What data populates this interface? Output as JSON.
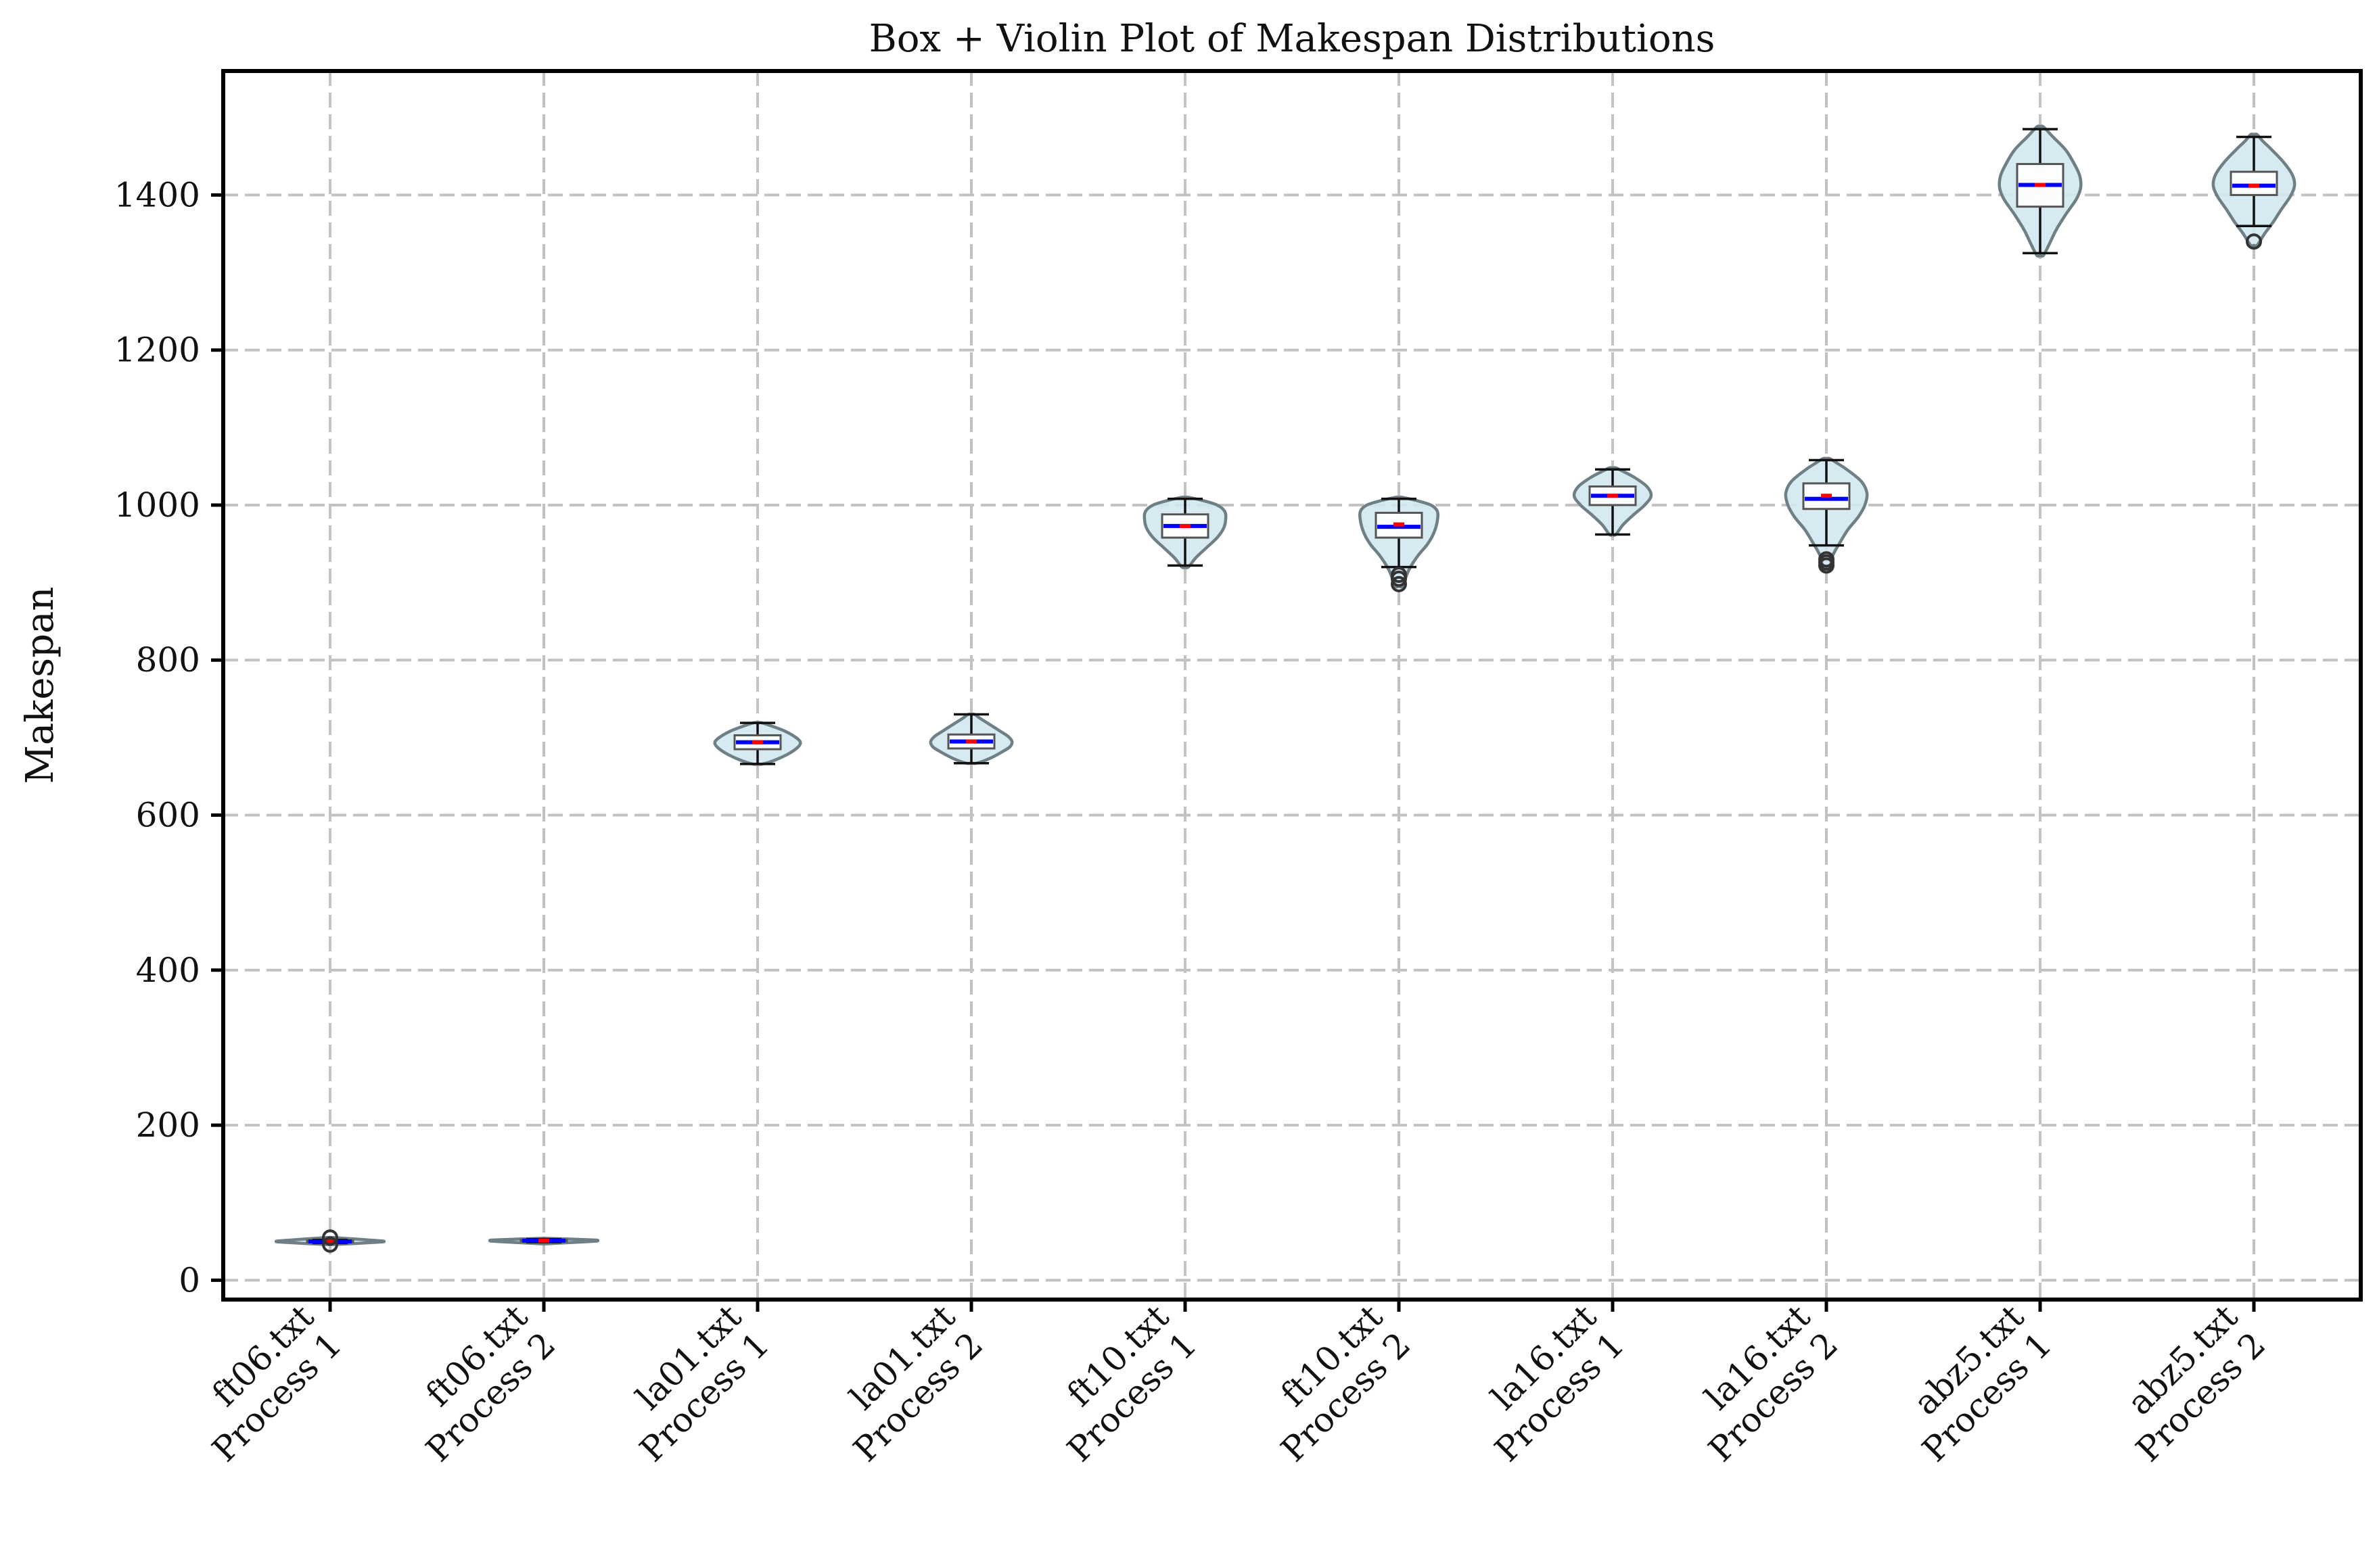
{
  "chart_data": {
    "type": "violin",
    "title": "Box + Violin Plot of Makespan Distributions",
    "xlabel": "",
    "ylabel": "Makespan",
    "ylim": [
      -25,
      1560
    ],
    "yticks": [
      0,
      200,
      400,
      600,
      800,
      1000,
      1200,
      1400
    ],
    "grid": true,
    "colors": {
      "violin_fill": "#d3e8ef",
      "violin_edge": "#6e7f86",
      "median": "#ff0000",
      "mean": "#0000ff",
      "box_fill": "#ffffff"
    },
    "categories": [
      {
        "line1": "ft06.txt",
        "line2": "Process 1"
      },
      {
        "line1": "ft06.txt",
        "line2": "Process 2"
      },
      {
        "line1": "la01.txt",
        "line2": "Process 1"
      },
      {
        "line1": "la01.txt",
        "line2": "Process 2"
      },
      {
        "line1": "ft10.txt",
        "line2": "Process 1"
      },
      {
        "line1": "ft10.txt",
        "line2": "Process 2"
      },
      {
        "line1": "la16.txt",
        "line2": "Process 1"
      },
      {
        "line1": "la16.txt",
        "line2": "Process 2"
      },
      {
        "line1": "abz5.txt",
        "line2": "Process 1"
      },
      {
        "line1": "abz5.txt",
        "line2": "Process 2"
      }
    ],
    "series": [
      {
        "min": 48,
        "q1": 49,
        "median": 50,
        "mean": 50,
        "q3": 51,
        "max": 52,
        "outliers": [
          46,
          55
        ],
        "violin": {
          "min": 46,
          "max": 55,
          "profile": [
            [
              46,
              0.03
            ],
            [
              49,
              0.45
            ],
            [
              50,
              0.5
            ],
            [
              51,
              0.45
            ],
            [
              55,
              0.03
            ]
          ]
        }
      },
      {
        "min": 49,
        "q1": 50,
        "median": 51,
        "mean": 51,
        "q3": 52,
        "max": 53,
        "outliers": [],
        "violin": {
          "min": 47,
          "max": 54,
          "profile": [
            [
              47,
              0.03
            ],
            [
              50,
              0.45
            ],
            [
              51,
              0.5
            ],
            [
              52,
              0.45
            ],
            [
              54,
              0.03
            ]
          ]
        }
      },
      {
        "min": 666,
        "q1": 685,
        "median": 694,
        "mean": 694,
        "q3": 703,
        "max": 719,
        "outliers": [],
        "violin": {
          "min": 666,
          "max": 719,
          "profile": [
            [
              666,
              0.05
            ],
            [
              672,
              0.18
            ],
            [
              680,
              0.3
            ],
            [
              688,
              0.38
            ],
            [
              694,
              0.4
            ],
            [
              700,
              0.36
            ],
            [
              708,
              0.26
            ],
            [
              714,
              0.15
            ],
            [
              719,
              0.04
            ]
          ]
        }
      },
      {
        "min": 667,
        "q1": 686,
        "median": 695,
        "mean": 695,
        "q3": 704,
        "max": 730,
        "outliers": [],
        "violin": {
          "min": 667,
          "max": 730,
          "profile": [
            [
              667,
              0.05
            ],
            [
              673,
              0.17
            ],
            [
              681,
              0.28
            ],
            [
              688,
              0.36
            ],
            [
              695,
              0.38
            ],
            [
              702,
              0.34
            ],
            [
              710,
              0.25
            ],
            [
              718,
              0.16
            ],
            [
              725,
              0.08
            ],
            [
              730,
              0.03
            ]
          ]
        }
      },
      {
        "min": 922,
        "q1": 958,
        "median": 973,
        "mean": 973,
        "q3": 988,
        "max": 1008,
        "outliers": [],
        "violin": {
          "min": 920,
          "max": 1010,
          "profile": [
            [
              920,
              0.03
            ],
            [
              932,
              0.1
            ],
            [
              945,
              0.2
            ],
            [
              958,
              0.3
            ],
            [
              970,
              0.36
            ],
            [
              982,
              0.38
            ],
            [
              992,
              0.37
            ],
            [
              1000,
              0.3
            ],
            [
              1006,
              0.16
            ],
            [
              1010,
              0.03
            ]
          ]
        }
      },
      {
        "min": 920,
        "q1": 958,
        "median": 975,
        "mean": 972,
        "q3": 990,
        "max": 1008,
        "outliers": [
          898,
          905,
          910
        ],
        "violin": {
          "min": 895,
          "max": 1010,
          "profile": [
            [
              895,
              0.03
            ],
            [
              905,
              0.06
            ],
            [
              918,
              0.1
            ],
            [
              935,
              0.18
            ],
            [
              950,
              0.27
            ],
            [
              965,
              0.33
            ],
            [
              980,
              0.36
            ],
            [
              992,
              0.36
            ],
            [
              1000,
              0.3
            ],
            [
              1006,
              0.16
            ],
            [
              1010,
              0.03
            ]
          ]
        }
      },
      {
        "min": 962,
        "q1": 1000,
        "median": 1012,
        "mean": 1012,
        "q3": 1024,
        "max": 1046,
        "outliers": [],
        "violin": {
          "min": 962,
          "max": 1048,
          "profile": [
            [
              962,
              0.03
            ],
            [
              975,
              0.1
            ],
            [
              988,
              0.2
            ],
            [
              1000,
              0.3
            ],
            [
              1012,
              0.36
            ],
            [
              1024,
              0.32
            ],
            [
              1036,
              0.2
            ],
            [
              1044,
              0.09
            ],
            [
              1048,
              0.03
            ]
          ]
        }
      },
      {
        "min": 948,
        "q1": 995,
        "median": 1012,
        "mean": 1008,
        "q3": 1028,
        "max": 1058,
        "outliers": [
          922,
          926,
          930
        ],
        "violin": {
          "min": 918,
          "max": 1060,
          "profile": [
            [
              918,
              0.03
            ],
            [
              935,
              0.06
            ],
            [
              950,
              0.12
            ],
            [
              968,
              0.2
            ],
            [
              985,
              0.3
            ],
            [
              1000,
              0.36
            ],
            [
              1015,
              0.38
            ],
            [
              1030,
              0.33
            ],
            [
              1045,
              0.2
            ],
            [
              1055,
              0.09
            ],
            [
              1060,
              0.03
            ]
          ]
        }
      },
      {
        "min": 1325,
        "q1": 1385,
        "median": 1413,
        "mean": 1413,
        "q3": 1440,
        "max": 1485,
        "outliers": [],
        "violin": {
          "min": 1322,
          "max": 1488,
          "profile": [
            [
              1322,
              0.03
            ],
            [
              1335,
              0.08
            ],
            [
              1355,
              0.15
            ],
            [
              1375,
              0.24
            ],
            [
              1395,
              0.34
            ],
            [
              1410,
              0.38
            ],
            [
              1425,
              0.37
            ],
            [
              1440,
              0.32
            ],
            [
              1458,
              0.24
            ],
            [
              1475,
              0.12
            ],
            [
              1488,
              0.03
            ]
          ]
        }
      },
      {
        "min": 1360,
        "q1": 1400,
        "median": 1412,
        "mean": 1412,
        "q3": 1430,
        "max": 1475,
        "outliers": [
          1340
        ],
        "violin": {
          "min": 1335,
          "max": 1478,
          "profile": [
            [
              1335,
              0.03
            ],
            [
              1350,
              0.1
            ],
            [
              1365,
              0.18
            ],
            [
              1382,
              0.26
            ],
            [
              1398,
              0.34
            ],
            [
              1412,
              0.38
            ],
            [
              1426,
              0.36
            ],
            [
              1442,
              0.28
            ],
            [
              1458,
              0.17
            ],
            [
              1470,
              0.08
            ],
            [
              1478,
              0.03
            ]
          ]
        }
      }
    ]
  }
}
